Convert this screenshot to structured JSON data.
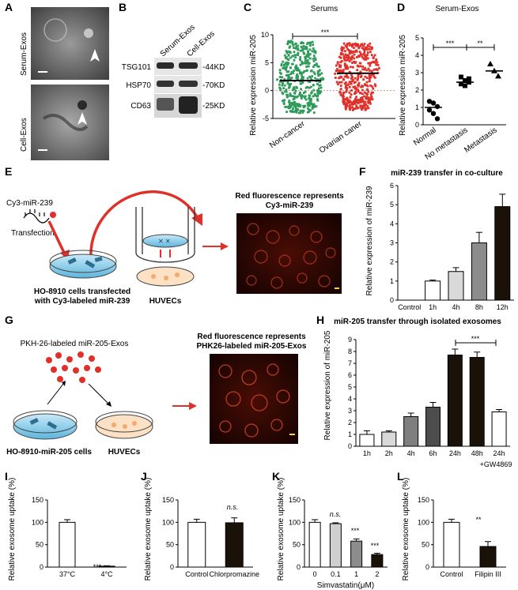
{
  "panels": {
    "A": {
      "letter": "A",
      "top_label": "Serum-Exos",
      "bottom_label": "Cell-Exos"
    },
    "B": {
      "letter": "B",
      "col1": "Serum-Exos",
      "col2": "Cell-Exos",
      "rows": [
        {
          "name": "TSG101",
          "size": "-44KD"
        },
        {
          "name": "HSP70",
          "size": "-70KD"
        },
        {
          "name": "CD63",
          "size": "-25KD"
        }
      ]
    },
    "C": {
      "letter": "C",
      "title": "Serums",
      "ylabel": "Relative expression miR-205",
      "sig": "***"
    },
    "D": {
      "letter": "D",
      "title": "Serum-Exos",
      "ylabel": "Relative expression miR-205",
      "sig1": "***",
      "sig2": "**"
    },
    "E": {
      "letter": "E",
      "cy3": "Cy3-miR-239",
      "transfection": "Transfection",
      "cells_line1": "HO-8910 cells transfected",
      "cells_line2": "with Cy3-labeled miR-239",
      "huvecs": "HUVECs",
      "red_line1": "Red fluorescence represents",
      "red_line2": "Cy3-miR-239"
    },
    "F": {
      "letter": "F",
      "title": "miR-239 transfer in co-culture",
      "ylabel": "Relative expression of miR-239"
    },
    "G": {
      "letter": "G",
      "pkh": "PKH-26-labeled miR-205-Exos",
      "cells": "HO-8910-miR-205 cells",
      "huvecs": "HUVECs",
      "red_line1": "Red fluorescence represents",
      "red_line2": "PHK26-labeled miR-205-Exos"
    },
    "H": {
      "letter": "H",
      "title": "miR-205 transfer through isolated exosomes",
      "ylabel": "Relative expression of miR-205",
      "sig": "***",
      "gw": "+GW4869"
    },
    "I": {
      "letter": "I",
      "ylabel": "Relative exosome uptake (%)",
      "sig": "***"
    },
    "J": {
      "letter": "J",
      "ylabel": "Relative exosome uptake (%)",
      "ns": "n.s."
    },
    "K": {
      "letter": "K",
      "ylabel": "Relative exosome uptake (%)",
      "xlabel": "Simvastatin(μM)",
      "ns": "n.s.",
      "sig1": "***",
      "sig2": "***"
    },
    "L": {
      "letter": "L",
      "ylabel": "Relative exosome uptake (%)",
      "sig": "**"
    }
  },
  "chart_data": [
    {
      "id": "C",
      "type": "scatter",
      "title": "Serums",
      "ylabel": "Relative expression miR-205",
      "categories": [
        "Non-cancer",
        "Ovarian caner"
      ],
      "means": [
        1.8,
        3.1
      ],
      "ranges": [
        [
          -4,
          9
        ],
        [
          -3.5,
          8.5
        ]
      ],
      "ylim": [
        -5,
        10
      ],
      "yticks": [
        -5,
        0,
        5,
        10
      ]
    },
    {
      "id": "D",
      "type": "scatter",
      "title": "Serum-Exos",
      "ylabel": "Relative expression miR-205",
      "categories": [
        "Normal",
        "No metastasis",
        "Metastasis"
      ],
      "means": [
        1.0,
        2.45,
        3.1
      ],
      "points": [
        [
          1.35,
          1.25,
          1.05,
          0.85,
          0.65,
          0.35
        ],
        [
          2.75,
          2.55,
          2.45,
          2.35,
          2.25,
          2.65
        ],
        [
          3.5,
          3.1,
          2.8
        ]
      ],
      "ylim": [
        0,
        5
      ],
      "yticks": [
        0,
        1,
        2,
        3,
        4,
        5
      ]
    },
    {
      "id": "F",
      "type": "bar",
      "title": "miR-239 transfer in co-culture",
      "ylabel": "Relative expression of miR-239",
      "categories": [
        "Control",
        "1h",
        "4h",
        "8h",
        "12h"
      ],
      "values": [
        0,
        1.0,
        1.5,
        3.0,
        4.9
      ],
      "errors": [
        0,
        0.05,
        0.2,
        0.55,
        0.65
      ],
      "ylim": [
        0,
        6
      ],
      "yticks": [
        0,
        1,
        2,
        3,
        4,
        5,
        6
      ]
    },
    {
      "id": "H",
      "type": "bar",
      "title": "miR-205 transfer through isolated exosomes",
      "ylabel": "Relative expression of miR-205",
      "categories": [
        "1h",
        "2h",
        "4h",
        "6h",
        "24h",
        "48h",
        "24h"
      ],
      "values": [
        1.0,
        1.2,
        2.5,
        3.3,
        7.7,
        7.5,
        2.9
      ],
      "errors": [
        0.3,
        0.1,
        0.3,
        0.4,
        0.5,
        0.45,
        0.2
      ],
      "ylim": [
        0,
        9
      ],
      "yticks": [
        0,
        1,
        2,
        3,
        4,
        5,
        6,
        7,
        8,
        9
      ]
    },
    {
      "id": "I",
      "type": "bar",
      "ylabel": "Relative exosome uptake (%)",
      "categories": [
        "37°C",
        "4°C"
      ],
      "values": [
        100,
        2
      ],
      "errors": [
        6,
        1
      ],
      "ylim": [
        0,
        150
      ],
      "yticks": [
        0,
        50,
        100,
        150
      ]
    },
    {
      "id": "J",
      "type": "bar",
      "ylabel": "Relative exosome uptake (%)",
      "categories": [
        "Control",
        "Chlorpromazine"
      ],
      "values": [
        100,
        99
      ],
      "errors": [
        7,
        11
      ],
      "ylim": [
        0,
        150
      ],
      "yticks": [
        0,
        50,
        100,
        150
      ]
    },
    {
      "id": "K",
      "type": "bar",
      "ylabel": "Relative exosome uptake (%)",
      "xlabel": "Simvastatin(μM)",
      "categories": [
        "0",
        "0.1",
        "1",
        "2"
      ],
      "values": [
        100,
        97,
        58,
        28
      ],
      "errors": [
        6,
        2,
        5,
        3
      ],
      "ylim": [
        0,
        150
      ],
      "yticks": [
        0,
        50,
        100,
        150
      ]
    },
    {
      "id": "L",
      "type": "bar",
      "ylabel": "Relative exosome uptake (%)",
      "categories": [
        "Control",
        "Filipin III"
      ],
      "values": [
        100,
        46
      ],
      "errors": [
        7,
        11
      ],
      "ylim": [
        0,
        150
      ],
      "yticks": [
        0,
        50,
        100,
        150
      ]
    }
  ]
}
